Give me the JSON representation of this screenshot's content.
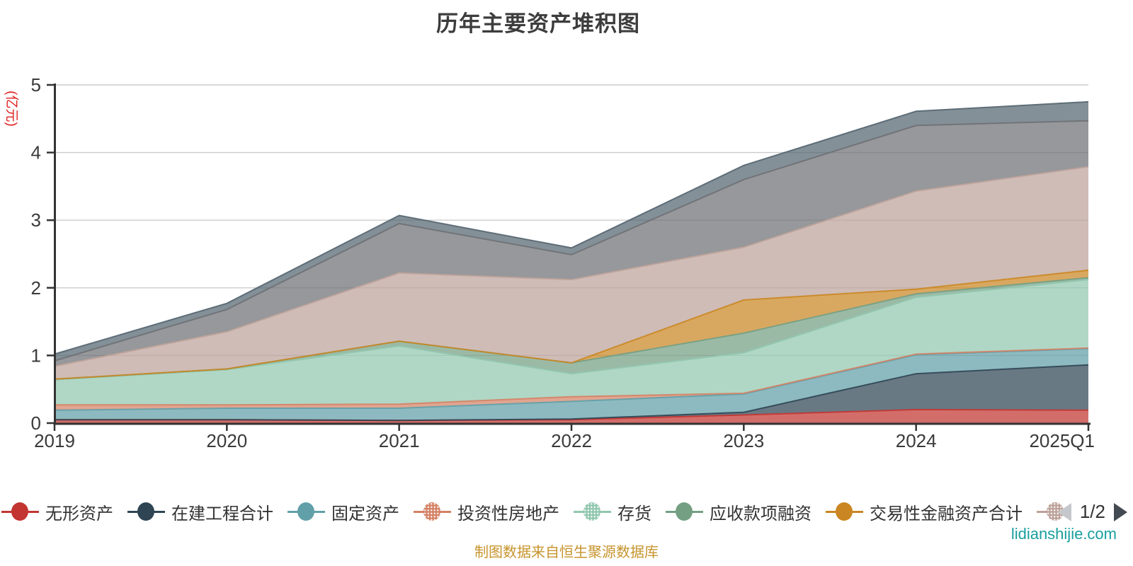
{
  "title": "历年主要资产堆积图",
  "y_axis_name": "(亿元)",
  "legend": {
    "page_label": "1/2",
    "items": [
      {
        "label": "无形资产",
        "color": "#c23531",
        "decal": false,
        "truncated": false
      },
      {
        "label": "在建工程合计",
        "color": "#2f4554",
        "decal": false,
        "truncated": false
      },
      {
        "label": "固定资产",
        "color": "#61a0a8",
        "decal": false,
        "truncated": false
      },
      {
        "label": "投资性房地产",
        "color": "#d48265",
        "decal": true,
        "truncated": false
      },
      {
        "label": "存货",
        "color": "#91c7ae",
        "decal": true,
        "truncated": false
      },
      {
        "label": "应收款项融资",
        "color": "#749f83",
        "decal": false,
        "truncated": false
      },
      {
        "label": "交易性金融资产合计",
        "color": "#ca8622",
        "decal": false,
        "truncated": false
      },
      {
        "label": "",
        "color": "#bda29a",
        "decal": true,
        "truncated": true
      }
    ]
  },
  "footer": {
    "source_note": "制图数据来自恒生聚源数据库",
    "watermark": "lidianshijie.com"
  },
  "chart_data": {
    "type": "area",
    "stacked": true,
    "title": "历年主要资产堆积图",
    "ylabel": "(亿元)",
    "ylim": [
      0,
      5
    ],
    "yticks": [
      0,
      1,
      2,
      3,
      4,
      5
    ],
    "grid": true,
    "legend_position": "bottom",
    "categories": [
      "2019",
      "2020",
      "2021",
      "2022",
      "2023",
      "2024",
      "2025Q1"
    ],
    "series": [
      {
        "name": "无形资产",
        "color": "#c23531",
        "values": [
          0.05,
          0.05,
          0.04,
          0.05,
          0.12,
          0.2,
          0.19
        ]
      },
      {
        "name": "在建工程合计",
        "color": "#2f4554",
        "values": [
          0.0,
          0.0,
          0.0,
          0.01,
          0.04,
          0.53,
          0.67
        ]
      },
      {
        "name": "固定资产",
        "color": "#61a0a8",
        "values": [
          0.14,
          0.17,
          0.18,
          0.26,
          0.27,
          0.28,
          0.24
        ]
      },
      {
        "name": "投资性房地产",
        "color": "#d48265",
        "values": [
          0.08,
          0.05,
          0.06,
          0.07,
          0.01,
          0.01,
          0.01
        ]
      },
      {
        "name": "存货",
        "color": "#91c7ae",
        "values": [
          0.37,
          0.52,
          0.86,
          0.34,
          0.6,
          0.84,
          1.01
        ]
      },
      {
        "name": "应收款项融资",
        "color": "#749f83",
        "values": [
          0.01,
          0.01,
          0.07,
          0.16,
          0.29,
          0.05,
          0.03
        ]
      },
      {
        "name": "交易性金融资产合计",
        "color": "#ca8622",
        "values": [
          0.0,
          0.0,
          0.0,
          0.0,
          0.49,
          0.07,
          0.11
        ]
      },
      {
        "name": "",
        "color": "#bda29a",
        "legend_page": 2,
        "values": [
          0.19,
          0.55,
          1.01,
          1.23,
          0.78,
          1.45,
          1.53
        ]
      },
      {
        "name": "",
        "color": "#6e7074",
        "legend_page": 2,
        "values": [
          0.08,
          0.33,
          0.73,
          0.37,
          1.0,
          0.97,
          0.68
        ]
      },
      {
        "name": "",
        "color": "#546570",
        "legend_page": 2,
        "values": [
          0.1,
          0.09,
          0.12,
          0.1,
          0.21,
          0.21,
          0.28
        ]
      }
    ]
  }
}
